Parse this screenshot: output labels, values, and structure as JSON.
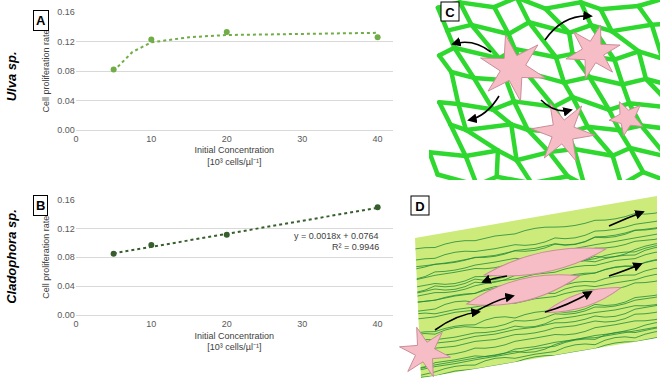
{
  "chart_data": [
    {
      "type": "scatter",
      "panel_label": "A",
      "side_label": "Ulva sp.",
      "x_label": "Initial Concentration\n[10³ cells/µl⁻¹]",
      "y_label": "Cell proliferation rate",
      "xlim": [
        0,
        42
      ],
      "xticks": [
        0,
        10,
        20,
        30,
        40
      ],
      "ylim": [
        0,
        0.16
      ],
      "yticks": [
        {
          "value": 0,
          "label": "0.00"
        },
        {
          "value": 0.04,
          "label": "0.04"
        },
        {
          "value": 0.08,
          "label": "0.08"
        },
        {
          "value": 0.12,
          "label": "0.12"
        },
        {
          "value": 0.16,
          "label": "0.16"
        }
      ],
      "grid": true,
      "series": [
        {
          "type": "scatter",
          "marker": "circle",
          "color": "#70ad47",
          "x": [
            5,
            10,
            20,
            40
          ],
          "values": [
            0.082,
            0.123,
            0.133,
            0.126
          ]
        },
        {
          "type": "line",
          "line_style": "dotted",
          "color": "#70ad47",
          "x": [
            5,
            7.5,
            10,
            15,
            20,
            30,
            40
          ],
          "values": [
            0.08,
            0.106,
            0.119,
            0.126,
            0.129,
            0.131,
            0.132
          ]
        }
      ]
    },
    {
      "type": "scatter",
      "panel_label": "B",
      "side_label": "Cladophora sp.",
      "x_label": "Initial Concentration\n[10³ cells/µl⁻¹]",
      "y_label": "Cell proliferation rate",
      "xlim": [
        0,
        42
      ],
      "xticks": [
        0,
        10,
        20,
        30,
        40
      ],
      "ylim": [
        0,
        0.16
      ],
      "yticks": [
        {
          "value": 0,
          "label": "0.00"
        },
        {
          "value": 0.04,
          "label": "0.04"
        },
        {
          "value": 0.08,
          "label": "0.08"
        },
        {
          "value": 0.12,
          "label": "0.12"
        },
        {
          "value": 0.16,
          "label": "0.16"
        }
      ],
      "grid": true,
      "annotations": [
        "y = 0.0018x + 0.0764",
        "R² = 0.9946"
      ],
      "series": [
        {
          "type": "scatter",
          "marker": "circle",
          "color": "#375f2e",
          "x": [
            5,
            10,
            20,
            40
          ],
          "values": [
            0.085,
            0.097,
            0.111,
            0.149
          ]
        },
        {
          "type": "line",
          "line_style": "dotted",
          "color": "#375f2e",
          "x": [
            5,
            40
          ],
          "values": [
            0.0854,
            0.1484
          ]
        }
      ]
    }
  ],
  "diagrams": [
    {
      "label": "C"
    },
    {
      "label": "D"
    }
  ]
}
